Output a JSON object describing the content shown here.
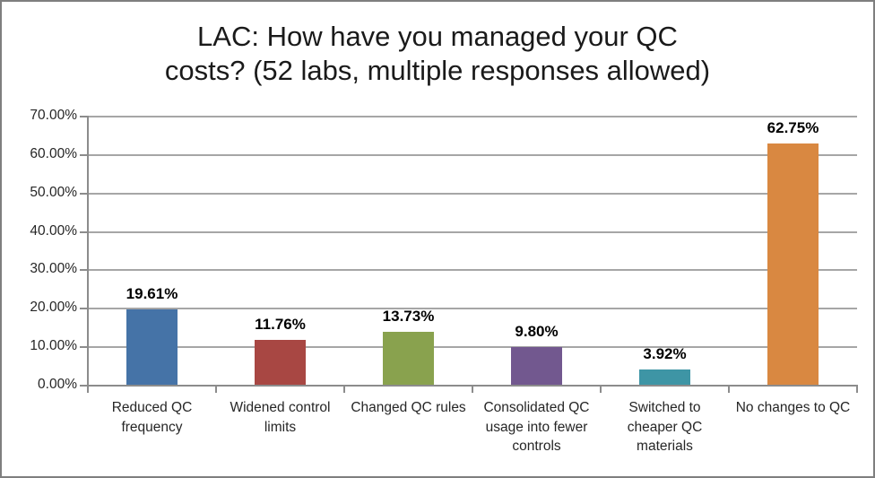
{
  "chart_data": {
    "type": "bar",
    "title": "LAC: How have you managed your QC costs? (52 labs, multiple responses allowed)",
    "title_lines": [
      "LAC: How have you managed your QC",
      "costs? (52 labs, multiple responses allowed)"
    ],
    "categories": [
      "Reduced QC frequency",
      "Widened control limits",
      "Changed QC rules",
      "Consolidated QC usage into fewer controls",
      "Switched to cheaper QC materials",
      "No changes to QC"
    ],
    "values": [
      19.61,
      11.76,
      13.73,
      9.8,
      3.92,
      62.75
    ],
    "data_labels": [
      "19.61%",
      "11.76%",
      "13.73%",
      "9.80%",
      "3.92%",
      "62.75%"
    ],
    "bar_colors": [
      "#4573A7",
      "#A84743",
      "#89A24E",
      "#72588F",
      "#3E95A5",
      "#D98841"
    ],
    "xlabel": "",
    "ylabel": "",
    "y_axis": {
      "min": 0,
      "max": 70,
      "step": 10,
      "tick_labels_top_to_bottom": [
        "70.00%",
        "60.00%",
        "50.00%",
        "40.00%",
        "30.00%",
        "20.00%",
        "10.00%",
        "0.00%"
      ]
    },
    "grid": true,
    "legend_position": "none"
  },
  "colors": {
    "gridline": "#A6A6A6",
    "axis": "#8C8C8C",
    "axis_text": "#262626",
    "title_text": "#1A1A1A",
    "data_label_text": "#000000",
    "frame_border": "#7F7F7F",
    "background": "#FFFFFF"
  }
}
